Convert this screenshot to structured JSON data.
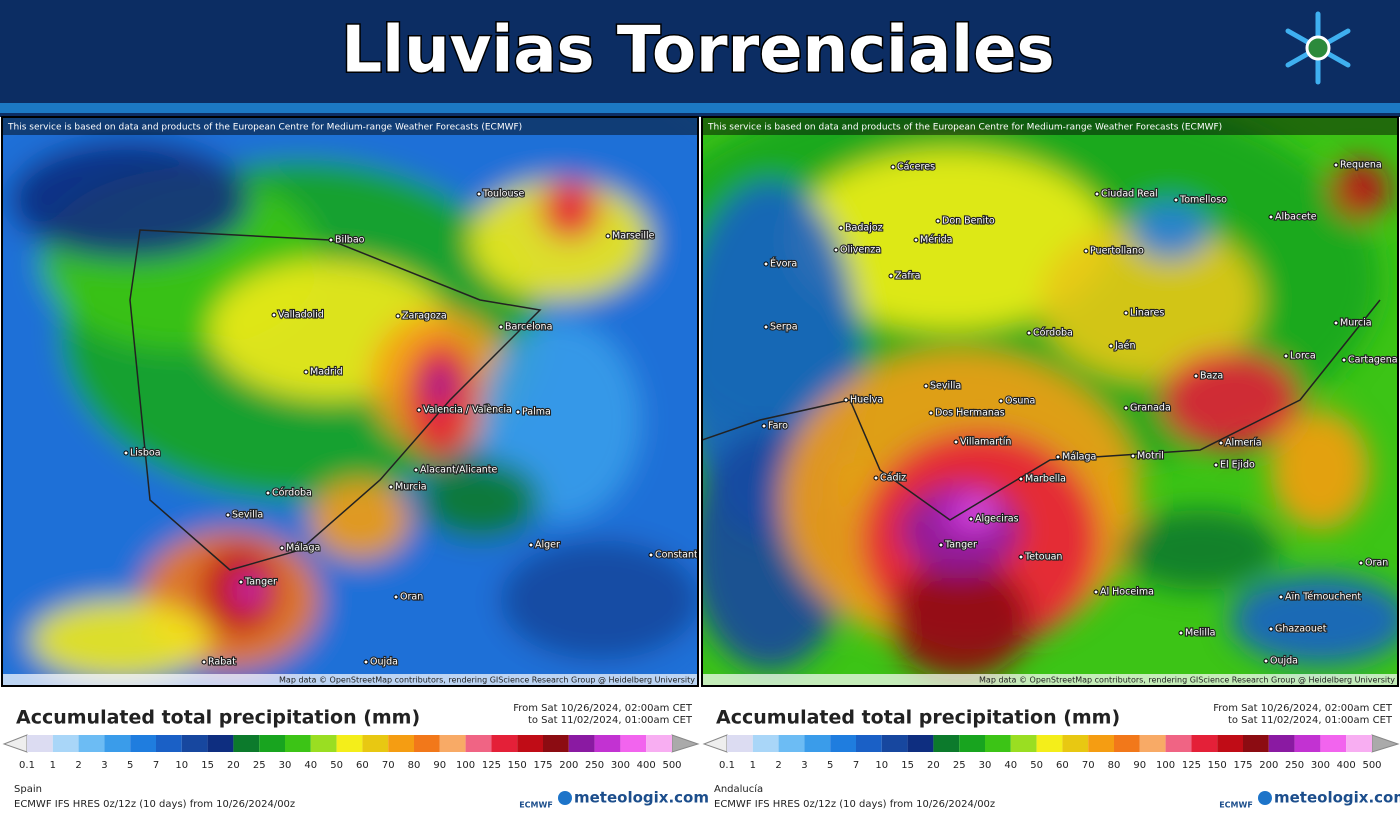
{
  "header": {
    "title": "Lluvias Torrenciales"
  },
  "legend": {
    "labels": [
      0.1,
      1,
      2,
      3,
      5,
      7,
      10,
      15,
      20,
      25,
      30,
      40,
      50,
      60,
      70,
      80,
      90,
      100,
      125,
      150,
      175,
      200,
      250,
      300,
      400,
      500
    ],
    "colors": [
      "#dcdcf2",
      "#a9d6f8",
      "#6cbcf4",
      "#3a9cea",
      "#1f7ddf",
      "#1a60c6",
      "#17479f",
      "#0e2e80",
      "#0c7a2c",
      "#18a41f",
      "#3cc416",
      "#9ade22",
      "#f4ee1a",
      "#e8c812",
      "#f59d12",
      "#f2781a",
      "#f8aa66",
      "#f06484",
      "#e42038",
      "#c00c16",
      "#8c0c12",
      "#8a1aa2",
      "#c232d2",
      "#f264ee",
      "#f8aef2"
    ]
  },
  "panels": [
    {
      "attribution": "This service is based on data and products of the European Centre for Medium-range Weather Forecasts (ECMWF)",
      "map_credit": "Map data © OpenStreetMap contributors, rendering GIScience Research Group @ Heidelberg University",
      "places": [
        "Bilbao",
        "Toulouse",
        "Marseille",
        "Zaragoza",
        "Valladolid",
        "Barcelona",
        "Madrid",
        "Valencia / València",
        "Palma",
        "Lisboa",
        "Alacant/Alicante",
        "Murcia",
        "Córdoba",
        "Sevilla",
        "Málaga",
        "Alger",
        "Oran",
        "Constantine",
        "Tanger",
        "Rabat",
        "Oujda"
      ],
      "legend_title": "Accumulated total precipitation (mm)",
      "from": "From Sat 10/26/2024, 02:00am CET",
      "to": "to Sat 11/02/2024, 01:00am CET",
      "region": "Spain",
      "model": "ECMWF IFS HRES 0z/12z (10 days) from 10/26/2024/00z",
      "logo_ecmwf": "ECMWF",
      "logo_site": "meteologix.com"
    },
    {
      "attribution": "This service is based on data and products of the European Centre for Medium-range Weather Forecasts (ECMWF)",
      "map_credit": "Map data © OpenStreetMap contributors, rendering GIScience Research Group @ Heidelberg University",
      "places": [
        "Cáceres",
        "Don Benito",
        "Mérida",
        "Badajoz",
        "Olivenza",
        "Zafra",
        "Évora",
        "Serpa",
        "Ciudad Real",
        "Tomelloso",
        "Albacete",
        "Requena",
        "Puertollano",
        "Linares",
        "Córdoba",
        "Jaén",
        "Murcia",
        "Lorca",
        "Cartagena",
        "Sevilla",
        "Dos Hermanas",
        "Osuna",
        "Huelva",
        "Faro",
        "Baza",
        "Granada",
        "Almería",
        "El Ejido",
        "Villamartín",
        "Málaga",
        "Motril",
        "Cádiz",
        "Marbella",
        "Algeciras",
        "Tanger",
        "Tetouan",
        "Al Hoceima",
        "Melilla",
        "Ghazaouet",
        "Oujda",
        "Oran",
        "Aïn Témouchent"
      ],
      "legend_title": "Accumulated total precipitation (mm)",
      "from": "From Sat 10/26/2024, 02:00am CET",
      "to": "to Sat 11/02/2024, 01:00am CET",
      "region": "Andalucía",
      "model": "ECMWF IFS HRES 0z/12z (10 days) from 10/26/2024/00z",
      "logo_ecmwf": "ECMWF",
      "logo_site": "meteologix.com"
    }
  ]
}
